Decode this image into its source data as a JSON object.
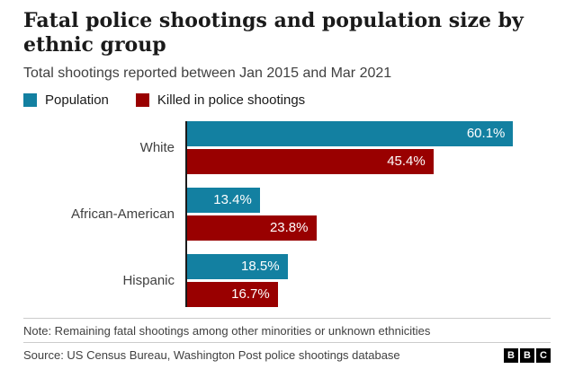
{
  "chart_data": {
    "type": "bar",
    "orientation": "horizontal",
    "title": "Fatal police shootings and population size by ethnic group",
    "subtitle": "Total shootings reported between Jan 2015 and Mar 2021",
    "categories": [
      "White",
      "African-American",
      "Hispanic"
    ],
    "series": [
      {
        "key": "population",
        "name": "Population",
        "color": "#1380A1",
        "values": [
          60.1,
          13.4,
          18.5
        ],
        "labels": [
          "60.1%",
          "13.4%",
          "18.5%"
        ]
      },
      {
        "key": "killed",
        "name": "Killed in police shootings",
        "color": "#990000",
        "values": [
          45.4,
          23.8,
          16.7
        ],
        "labels": [
          "45.4%",
          "23.8%",
          "16.7%"
        ]
      }
    ],
    "xlim": [
      0,
      67
    ],
    "value_labels_inside": true,
    "legend_position": "top",
    "grid": false,
    "note": "Note: Remaining fatal shootings among other minorities or unknown ethnicities",
    "source": "Source: US Census Bureau, Washington Post police shootings database",
    "logo_letters": [
      "B",
      "B",
      "C"
    ],
    "colors": {
      "axis": "#1a1a1a",
      "title_text": "#1a1a1a",
      "body_text": "#404040",
      "rule": "#cccccc"
    }
  }
}
